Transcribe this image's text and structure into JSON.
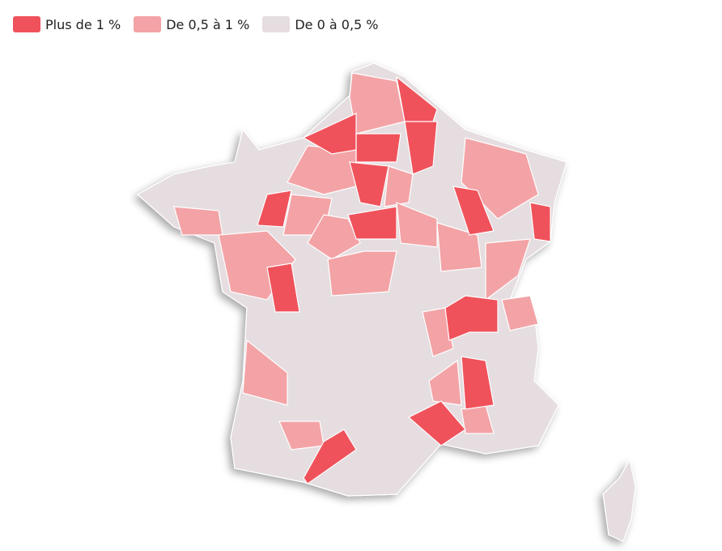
{
  "legend": [
    {
      "label": "Plus de 1 %",
      "color": "#f0525b"
    },
    {
      "label": "De 0,5 à 1 %",
      "color": "#f3a3a6"
    },
    {
      "label": "De 0 à 0,5 %",
      "color": "#e5dde0"
    }
  ]
}
